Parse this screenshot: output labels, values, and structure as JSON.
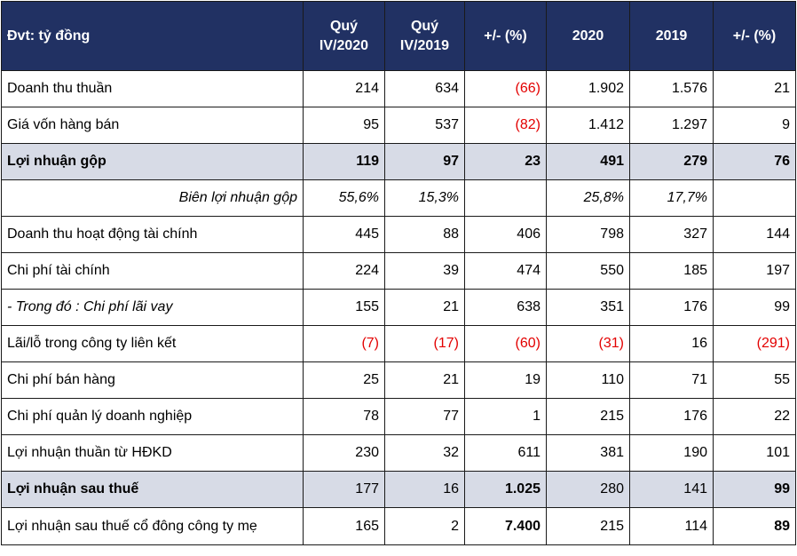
{
  "header": {
    "unit_label": "Đvt: tỷ đồng",
    "columns": [
      "Quý IV/2020",
      "Quý IV/2019",
      "+/- (%)",
      "2020",
      "2019",
      "+/- (%)"
    ]
  },
  "rows": [
    {
      "label": "Doanh thu thuần",
      "values": [
        "214",
        "634",
        "(66)",
        "1.902",
        "1.576",
        "21"
      ],
      "neg": [
        false,
        false,
        true,
        false,
        false,
        false
      ],
      "bold_cells": [
        false,
        false,
        false,
        false,
        false,
        false
      ],
      "style": ""
    },
    {
      "label": "Giá vốn hàng bán",
      "values": [
        "95",
        "537",
        "(82)",
        "1.412",
        "1.297",
        "9"
      ],
      "neg": [
        false,
        false,
        true,
        false,
        false,
        false
      ],
      "bold_cells": [
        false,
        false,
        false,
        false,
        false,
        false
      ],
      "style": ""
    },
    {
      "label": "Lợi nhuận gộp",
      "values": [
        "119",
        "97",
        "23",
        "491",
        "279",
        "76"
      ],
      "neg": [
        false,
        false,
        false,
        false,
        false,
        false
      ],
      "bold_cells": [
        true,
        true,
        true,
        true,
        true,
        true
      ],
      "style": "highlight"
    },
    {
      "label": "Biên lợi nhuận gộp",
      "values": [
        "55,6%",
        "15,3%",
        "",
        "25,8%",
        "17,7%",
        ""
      ],
      "neg": [
        false,
        false,
        false,
        false,
        false,
        false
      ],
      "bold_cells": [
        false,
        false,
        false,
        false,
        false,
        false
      ],
      "style": "margin"
    },
    {
      "label": "Doanh thu hoạt động tài chính",
      "values": [
        "445",
        "88",
        "406",
        "798",
        "327",
        "144"
      ],
      "neg": [
        false,
        false,
        false,
        false,
        false,
        false
      ],
      "bold_cells": [
        false,
        false,
        false,
        false,
        false,
        false
      ],
      "style": ""
    },
    {
      "label": "Chi phí tài chính",
      "values": [
        "224",
        "39",
        "474",
        "550",
        "185",
        "197"
      ],
      "neg": [
        false,
        false,
        false,
        false,
        false,
        false
      ],
      "bold_cells": [
        false,
        false,
        false,
        false,
        false,
        false
      ],
      "style": ""
    },
    {
      "label": "- Trong đó : Chi phí lãi vay",
      "values": [
        "155",
        "21",
        "638",
        "351",
        "176",
        "99"
      ],
      "neg": [
        false,
        false,
        false,
        false,
        false,
        false
      ],
      "bold_cells": [
        false,
        false,
        false,
        false,
        false,
        false
      ],
      "style": "italic-label"
    },
    {
      "label": "Lãi/lỗ trong công ty liên kết",
      "values": [
        "(7)",
        "(17)",
        "(60)",
        "(31)",
        "16",
        "(291)"
      ],
      "neg": [
        true,
        true,
        true,
        true,
        false,
        true
      ],
      "bold_cells": [
        false,
        false,
        false,
        false,
        false,
        false
      ],
      "style": ""
    },
    {
      "label": "Chi phí bán hàng",
      "values": [
        "25",
        "21",
        "19",
        "110",
        "71",
        "55"
      ],
      "neg": [
        false,
        false,
        false,
        false,
        false,
        false
      ],
      "bold_cells": [
        false,
        false,
        false,
        false,
        false,
        false
      ],
      "style": ""
    },
    {
      "label": "Chi phí quản lý doanh nghiệp",
      "values": [
        "78",
        "77",
        "1",
        "215",
        "176",
        "22"
      ],
      "neg": [
        false,
        false,
        false,
        false,
        false,
        false
      ],
      "bold_cells": [
        false,
        false,
        false,
        false,
        false,
        false
      ],
      "style": ""
    },
    {
      "label": "Lợi nhuận thuần từ HĐKD",
      "values": [
        "230",
        "32",
        "611",
        "381",
        "190",
        "101"
      ],
      "neg": [
        false,
        false,
        false,
        false,
        false,
        false
      ],
      "bold_cells": [
        false,
        false,
        false,
        false,
        false,
        false
      ],
      "style": ""
    },
    {
      "label": "Lợi nhuận sau thuế",
      "values": [
        "177",
        "16",
        "1.025",
        "280",
        "141",
        "99"
      ],
      "neg": [
        false,
        false,
        false,
        false,
        false,
        false
      ],
      "bold_cells": [
        false,
        false,
        true,
        false,
        false,
        true
      ],
      "style": "highlight"
    },
    {
      "label": "Lợi nhuận sau thuế cổ đông công ty mẹ",
      "values": [
        "165",
        "2",
        "7.400",
        "215",
        "114",
        "89"
      ],
      "neg": [
        false,
        false,
        false,
        false,
        false,
        false
      ],
      "bold_cells": [
        false,
        false,
        true,
        false,
        false,
        true
      ],
      "style": "last"
    }
  ]
}
